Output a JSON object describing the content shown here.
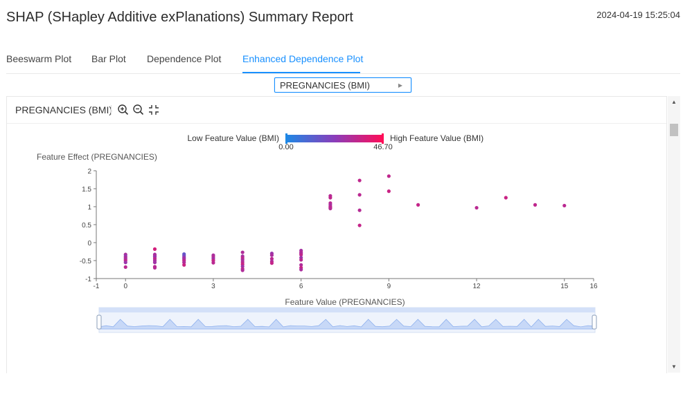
{
  "header": {
    "title": "SHAP (SHapley Additive exPlanations) Summary Report",
    "timestamp": "2024-04-19 15:25:04"
  },
  "tabs": [
    {
      "label": "Beeswarm Plot",
      "active": false
    },
    {
      "label": "Bar Plot",
      "active": false
    },
    {
      "label": "Dependence Plot",
      "active": false
    },
    {
      "label": "Enhanced Dependence Plot",
      "active": true
    }
  ],
  "feature_select": {
    "value": "PREGNANCIES (BMI)"
  },
  "panel": {
    "title": "PREGNANCIES (BMI)"
  },
  "icons": {
    "zoom_in": "zoom-in-icon",
    "zoom_out": "zoom-out-icon",
    "collapse": "collapse-icon"
  },
  "colors": {
    "accent": "#1890ff",
    "low": "#1e88e5",
    "high": "#ff0d57",
    "zoom_fill": "#d3e0f8",
    "zoom_line": "#8fb1ee"
  },
  "chart_data": {
    "type": "scatter",
    "colorbar": {
      "low_label": "Low Feature Value (BMI)",
      "high_label": "High Feature Value (BMI)",
      "min_text": "0.00",
      "max_text": "46.70",
      "min": 0,
      "max": 46.7
    },
    "ylabel": "Feature Effect (PREGNANCIES)",
    "xlabel": "Feature Value (PREGNANCIES)",
    "xlim": [
      -1,
      16
    ],
    "ylim": [
      -1,
      2
    ],
    "x_ticks": [
      -1,
      0,
      3,
      6,
      9,
      12,
      15,
      16
    ],
    "y_ticks": [
      -1,
      -0.5,
      0,
      0.5,
      1,
      1.5,
      2
    ],
    "points": [
      [
        0,
        -0.33,
        30
      ],
      [
        0,
        -0.38,
        25
      ],
      [
        0,
        -0.42,
        32
      ],
      [
        0,
        -0.46,
        28
      ],
      [
        0,
        -0.5,
        35
      ],
      [
        0,
        -0.55,
        27
      ],
      [
        0,
        -0.68,
        33
      ],
      [
        1,
        -0.18,
        38
      ],
      [
        1,
        -0.33,
        29
      ],
      [
        1,
        -0.37,
        31
      ],
      [
        1,
        -0.4,
        26
      ],
      [
        1,
        -0.45,
        34
      ],
      [
        1,
        -0.5,
        30
      ],
      [
        1,
        -0.55,
        28
      ],
      [
        1,
        -0.67,
        33
      ],
      [
        1,
        -0.7,
        32
      ],
      [
        2,
        -0.32,
        15
      ],
      [
        2,
        -0.36,
        18
      ],
      [
        2,
        -0.4,
        20
      ],
      [
        2,
        -0.43,
        30
      ],
      [
        2,
        -0.46,
        27
      ],
      [
        2,
        -0.5,
        34
      ],
      [
        2,
        -0.55,
        31
      ],
      [
        2,
        -0.62,
        36
      ],
      [
        3,
        -0.35,
        30
      ],
      [
        3,
        -0.4,
        32
      ],
      [
        3,
        -0.45,
        28
      ],
      [
        3,
        -0.5,
        35
      ],
      [
        3,
        -0.56,
        33
      ],
      [
        4,
        -0.27,
        31
      ],
      [
        4,
        -0.38,
        29
      ],
      [
        4,
        -0.43,
        34
      ],
      [
        4,
        -0.48,
        30
      ],
      [
        4,
        -0.54,
        32
      ],
      [
        4,
        -0.6,
        36
      ],
      [
        4,
        -0.66,
        28
      ],
      [
        4,
        -0.73,
        33
      ],
      [
        4,
        -0.77,
        31
      ],
      [
        5,
        -0.3,
        27
      ],
      [
        5,
        -0.35,
        30
      ],
      [
        5,
        -0.45,
        33
      ],
      [
        5,
        -0.52,
        31
      ],
      [
        5,
        -0.57,
        35
      ],
      [
        6,
        -0.22,
        29
      ],
      [
        6,
        -0.27,
        32
      ],
      [
        6,
        -0.3,
        30
      ],
      [
        6,
        -0.34,
        34
      ],
      [
        6,
        -0.42,
        27
      ],
      [
        6,
        -0.48,
        33
      ],
      [
        6,
        -0.62,
        31
      ],
      [
        6,
        -0.7,
        36
      ],
      [
        6,
        -0.75,
        30
      ],
      [
        7,
        1.3,
        32
      ],
      [
        7,
        1.25,
        34
      ],
      [
        7,
        1.1,
        33
      ],
      [
        7,
        1.05,
        30
      ],
      [
        7,
        1.0,
        31
      ],
      [
        7,
        0.98,
        35
      ],
      [
        7,
        0.95,
        32
      ],
      [
        8,
        1.73,
        34
      ],
      [
        8,
        1.33,
        33
      ],
      [
        8,
        0.9,
        32
      ],
      [
        8,
        0.48,
        35
      ],
      [
        9,
        1.85,
        34
      ],
      [
        9,
        1.43,
        36
      ],
      [
        10,
        1.05,
        35
      ],
      [
        12,
        0.97,
        33
      ],
      [
        13,
        1.25,
        36
      ],
      [
        14,
        1.05,
        34
      ],
      [
        15,
        1.03,
        33
      ]
    ]
  }
}
